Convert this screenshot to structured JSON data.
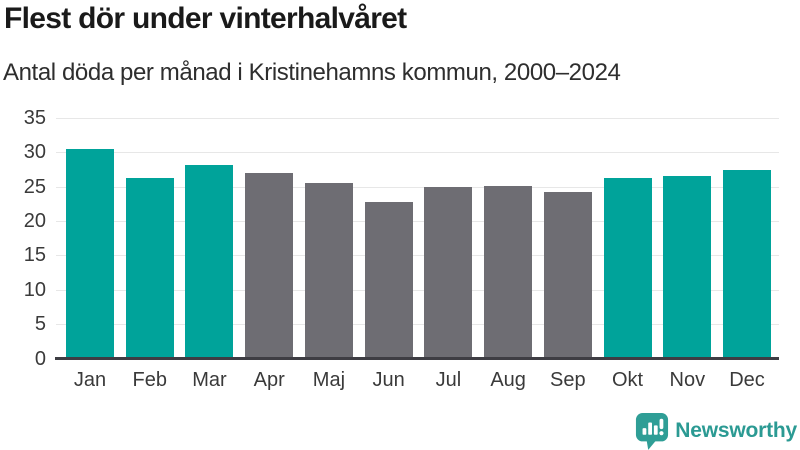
{
  "chart_data": {
    "type": "bar",
    "title": "Flest dör under vinterhalvåret",
    "subtitle": "Antal döda per månad i Kristinehamns kommun, 2000–2024",
    "categories": [
      "Jan",
      "Feb",
      "Mar",
      "Apr",
      "Maj",
      "Jun",
      "Jul",
      "Aug",
      "Sep",
      "Okt",
      "Nov",
      "Dec"
    ],
    "values": [
      30.5,
      26.3,
      28.1,
      27.0,
      25.5,
      22.7,
      25.0,
      25.1,
      24.2,
      26.3,
      26.5,
      27.4
    ],
    "highlighted": [
      true,
      true,
      true,
      false,
      false,
      false,
      false,
      false,
      false,
      true,
      true,
      true
    ],
    "xlabel": "",
    "ylabel": "",
    "ylim": [
      0,
      35
    ],
    "yticks": [
      0,
      5,
      10,
      15,
      20,
      25,
      30,
      35
    ],
    "grid": true,
    "legend": false,
    "colors": {
      "bar_highlight": "#00a39a",
      "bar_default": "#6e6d73",
      "grid": "#e7e7e7",
      "axis": "#3e3d43",
      "tick_text": "#3a3a3a"
    }
  },
  "footer": {
    "brand": "Newsworthy",
    "logo_icon": "newsworthy-speech-bubble-bar-chart-icon",
    "brand_color": "#2b9a93",
    "icon_color": "#2f9e96"
  }
}
